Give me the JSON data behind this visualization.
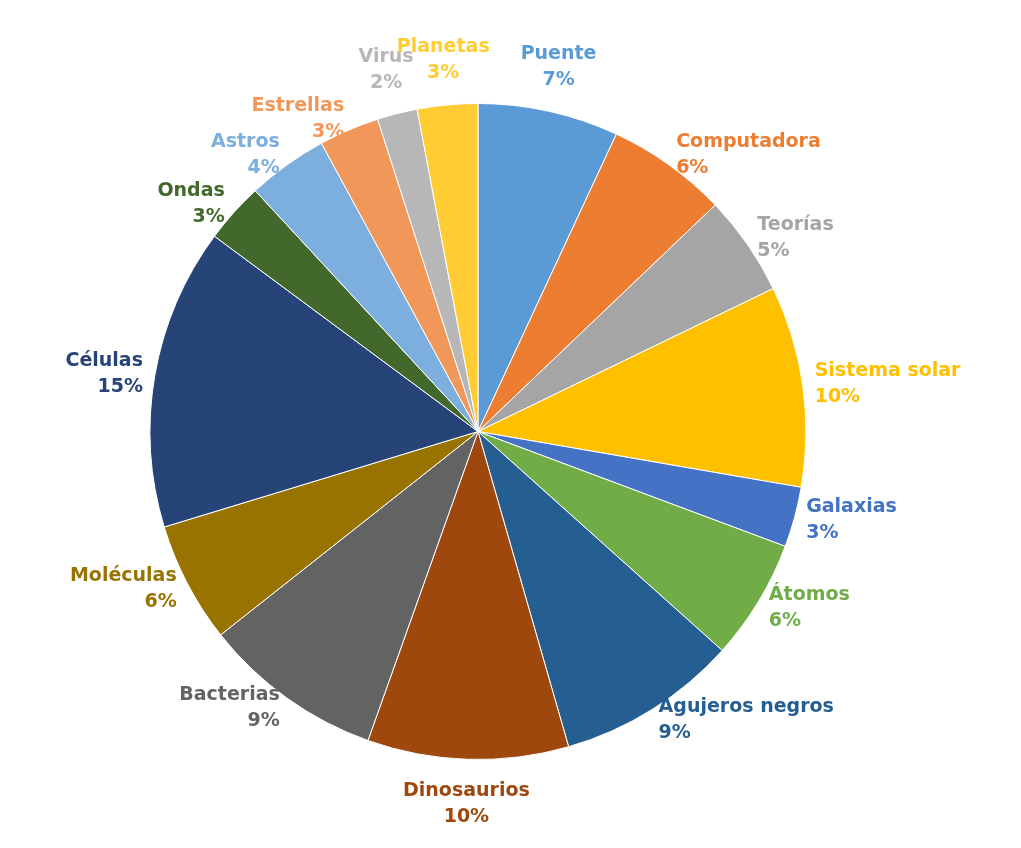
{
  "chart_data": {
    "type": "pie",
    "categories": [
      "Puente",
      "Computadora",
      "Teorías",
      "Sistema solar",
      "Galaxias",
      "Átomos",
      "Agujeros negros",
      "Dinosaurios",
      "Bacterias",
      "Moléculas",
      "Células",
      "Ondas",
      "Astros",
      "Estrellas",
      "Virus",
      "Planetas"
    ],
    "values": [
      7,
      6,
      5,
      10,
      3,
      6,
      9,
      10,
      9,
      6,
      15,
      3,
      4,
      3,
      2,
      3
    ],
    "value_labels": [
      "7%",
      "6%",
      "5%",
      "10%",
      "3%",
      "6%",
      "9%",
      "10%",
      "9%",
      "6%",
      "15%",
      "3%",
      "4%",
      "3%",
      "2%",
      "3%"
    ],
    "colors": [
      "#5b9bd5",
      "#ed7d31",
      "#a5a5a5",
      "#ffc000",
      "#4472c4",
      "#70ad47",
      "#255e91",
      "#9e480e",
      "#636363",
      "#997300",
      "#264478",
      "#43682b",
      "#7cafdd",
      "#f1975a",
      "#b7b7b7",
      "#ffcd33"
    ],
    "legend": false
  }
}
